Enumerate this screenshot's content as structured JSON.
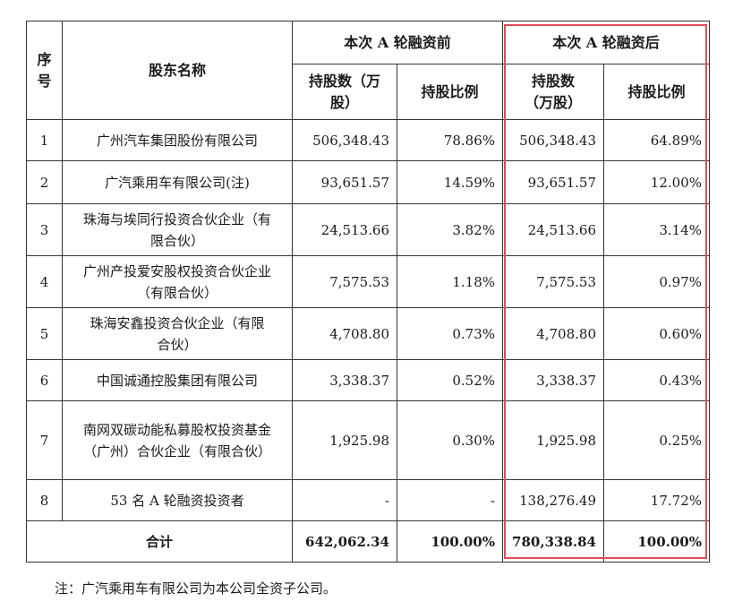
{
  "header": {
    "seq": "序号",
    "name": "股东名称",
    "before": "本次 A 轮融资前",
    "after": "本次 A 轮融资后",
    "shares": "持股数（万股）",
    "ratio": "持股比例"
  },
  "rows": [
    {
      "no": "1",
      "name": "广州汽车集团股份有限公司",
      "before_shares": "506,348.43",
      "before_ratio": "78.86%",
      "after_shares": "506,348.43",
      "after_ratio": "64.89%"
    },
    {
      "no": "2",
      "name": "广汽乘用车有限公司(注)",
      "before_shares": "93,651.57",
      "before_ratio": "14.59%",
      "after_shares": "93,651.57",
      "after_ratio": "12.00%"
    },
    {
      "no": "3",
      "name": "珠海与埃同行投资合伙企业（有限合伙）",
      "before_shares": "24,513.66",
      "before_ratio": "3.82%",
      "after_shares": "24,513.66",
      "after_ratio": "3.14%"
    },
    {
      "no": "4",
      "name": "广州产投爱安股权投资合伙企业（有限合伙）",
      "before_shares": "7,575.53",
      "before_ratio": "1.18%",
      "after_shares": "7,575.53",
      "after_ratio": "0.97%"
    },
    {
      "no": "5",
      "name": "珠海安鑫投资合伙企业（有限合伙）",
      "before_shares": "4,708.80",
      "before_ratio": "0.73%",
      "after_shares": "4,708.80",
      "after_ratio": "0.60%"
    },
    {
      "no": "6",
      "name": "中国诚通控股集团有限公司",
      "before_shares": "3,338.37",
      "before_ratio": "0.52%",
      "after_shares": "3,338.37",
      "after_ratio": "0.43%"
    },
    {
      "no": "7",
      "name": "南网双碳动能私募股权投资基金（广州）合伙企业（有限合伙）",
      "before_shares": "1,925.98",
      "before_ratio": "0.30%",
      "after_shares": "1,925.98",
      "after_ratio": "0.25%"
    },
    {
      "no": "8",
      "name": "53 名 A 轮融资投资者",
      "before_shares": "-",
      "before_ratio": "-",
      "after_shares": "138,276.49",
      "after_ratio": "17.72%"
    }
  ],
  "total": {
    "label": "合计",
    "before_shares": "642,062.34",
    "before_ratio": "100.00%",
    "after_shares": "780,338.84",
    "after_ratio": "100.00%"
  },
  "footnote": "注：广汽乘用车有限公司为本公司全资子公司。",
  "colors": {
    "highlight": "#e24a56",
    "border": "#333333"
  }
}
